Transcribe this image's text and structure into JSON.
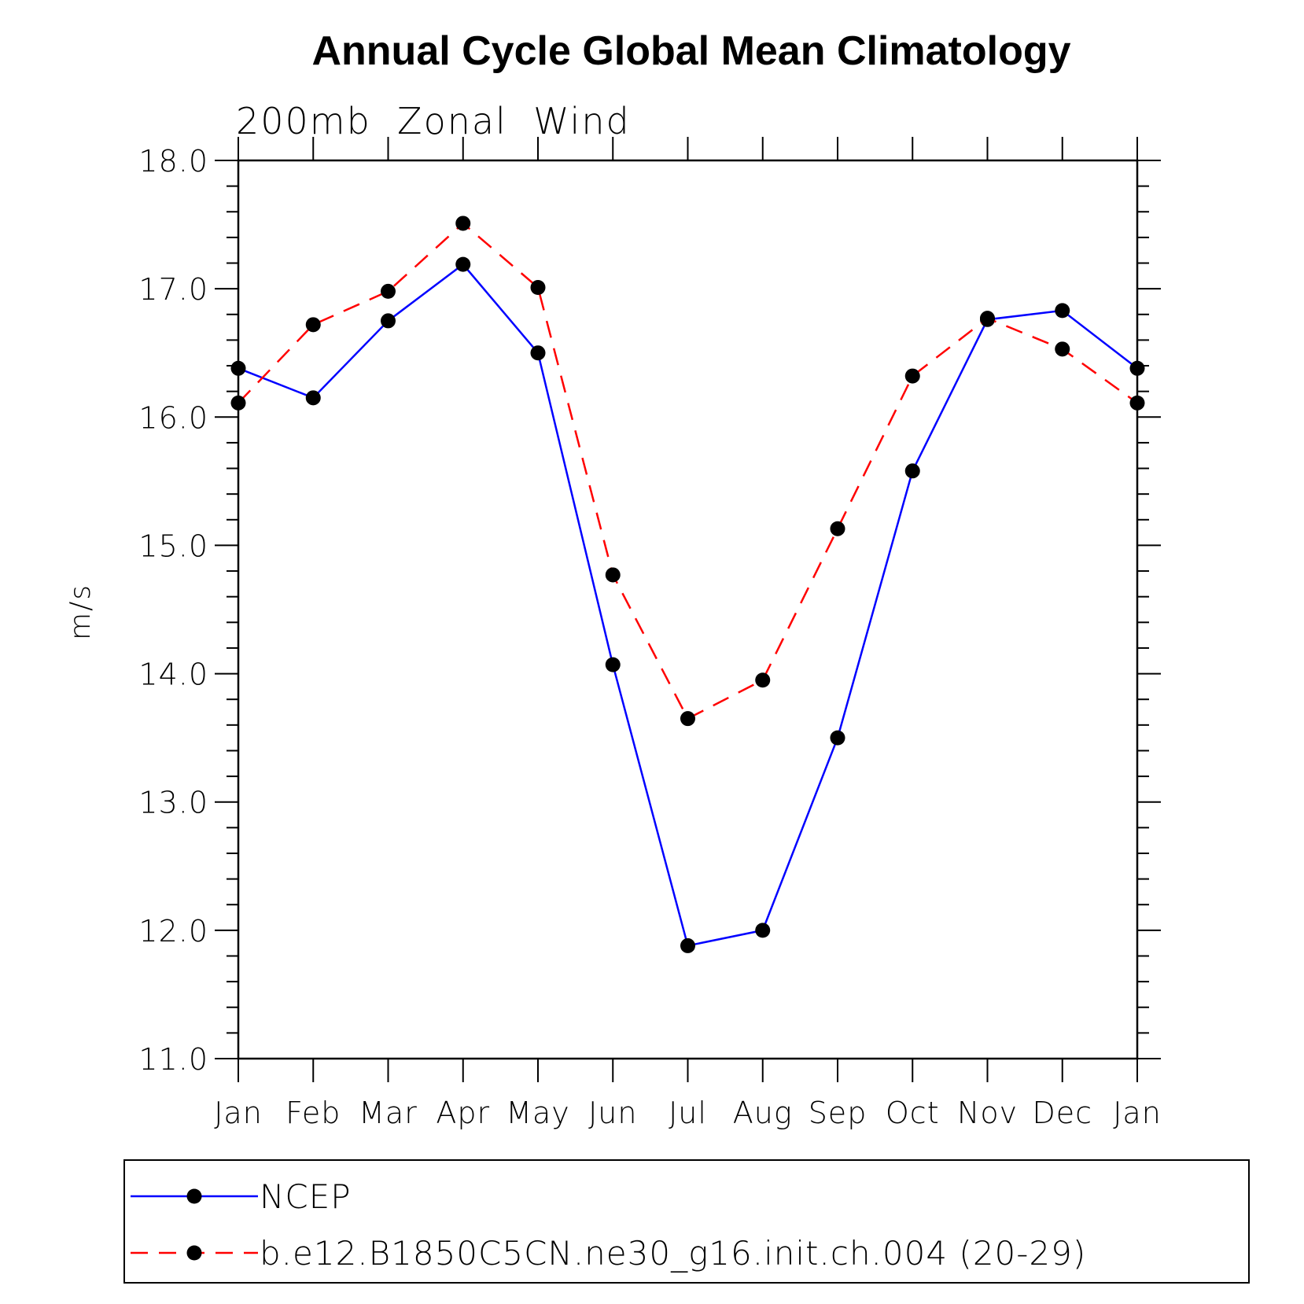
{
  "chart_data": {
    "type": "line",
    "title": "Annual Cycle Global Mean Climatology",
    "subtitle": "200mb  Zonal  Wind",
    "ylabel": "m/s",
    "xlabel": "",
    "categories": [
      "Jan",
      "Feb",
      "Mar",
      "Apr",
      "May",
      "Jun",
      "Jul",
      "Aug",
      "Sep",
      "Oct",
      "Nov",
      "Dec",
      "Jan"
    ],
    "ylim": [
      11.0,
      18.0
    ],
    "yticks": [
      "11.0",
      "12.0",
      "13.0",
      "14.0",
      "15.0",
      "16.0",
      "17.0",
      "18.0"
    ],
    "series": [
      {
        "name": "NCEP",
        "color": "#0000ff",
        "dash": "solid",
        "values": [
          16.38,
          16.15,
          16.75,
          17.19,
          16.5,
          14.07,
          11.88,
          12.0,
          13.5,
          15.58,
          16.76,
          16.83,
          16.38
        ]
      },
      {
        "name": "b.e12.B1850C5CN.ne30_g16.init.ch.004 (20-29)",
        "color": "#ff0000",
        "dash": "dashed",
        "values": [
          16.11,
          16.72,
          16.98,
          17.51,
          17.01,
          14.77,
          13.65,
          13.95,
          15.13,
          16.32,
          16.77,
          16.53,
          16.11
        ]
      }
    ],
    "legend": "bottom"
  }
}
